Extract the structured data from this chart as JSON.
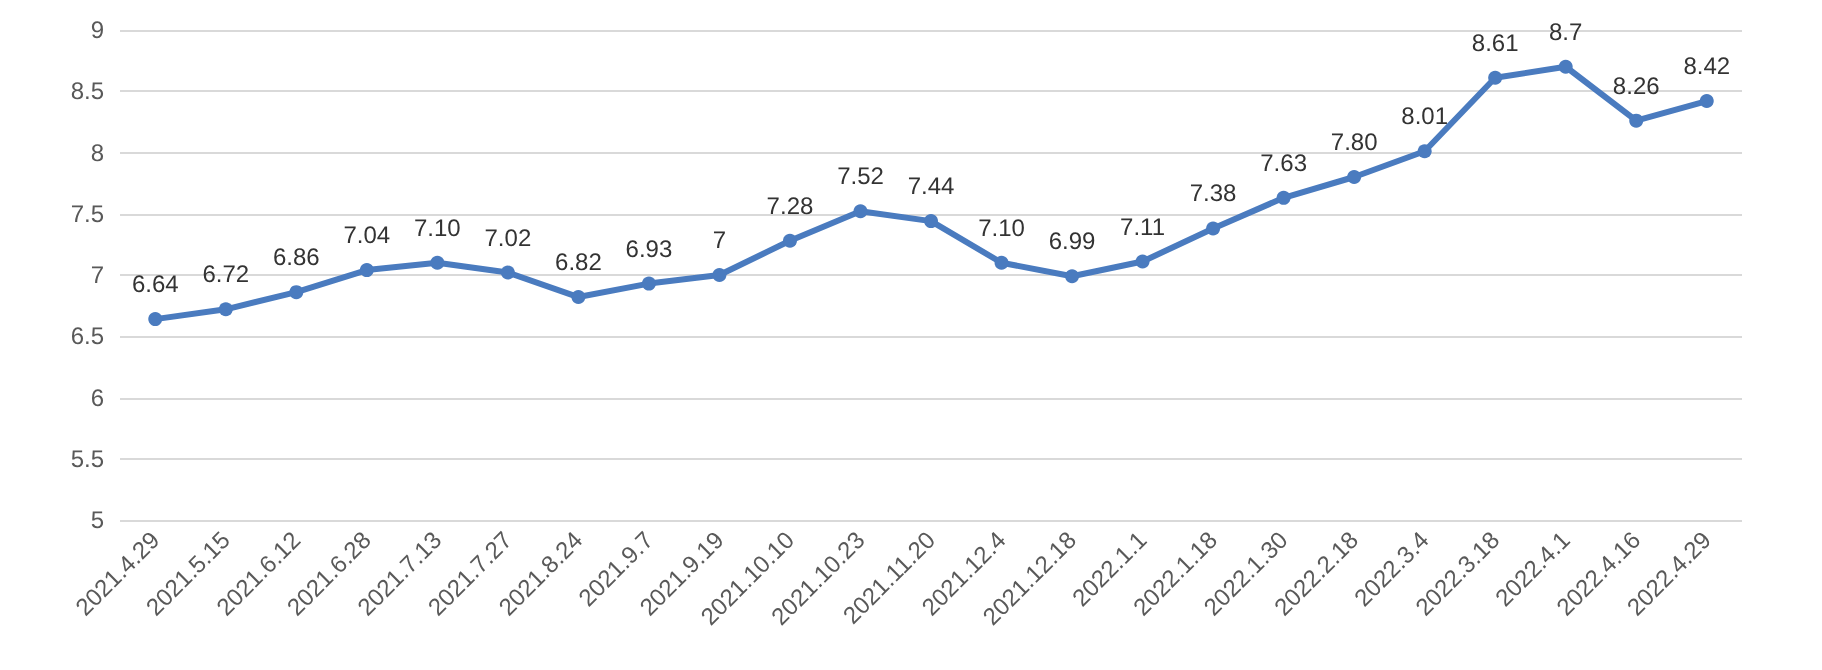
{
  "chart_data": {
    "type": "line",
    "categories": [
      "2021.4.29",
      "2021.5.15",
      "2021.6.12",
      "2021.6.28",
      "2021.7.13",
      "2021.7.27",
      "2021.8.24",
      "2021.9.7",
      "2021.9.19",
      "2021.10.10",
      "2021.10.23",
      "2021.11.20",
      "2021.12.4",
      "2021.12.18",
      "2022.1.1",
      "2022.1.18",
      "2022.1.30",
      "2022.2.18",
      "2022.3.4",
      "2022.3.18",
      "2022.4.1",
      "2022.4.16",
      "2022.4.29"
    ],
    "series": [
      {
        "color": "#4a7bbf",
        "values": [
          6.64,
          6.72,
          6.86,
          7.04,
          7.1,
          7.02,
          6.82,
          6.93,
          7,
          7.28,
          7.52,
          7.44,
          7.1,
          6.99,
          7.11,
          7.38,
          7.63,
          7.8,
          8.01,
          8.61,
          8.7,
          8.26,
          8.42
        ],
        "value_labels": [
          "6.64",
          "6.72",
          "6.86",
          "7.04",
          "7.10",
          "7.02",
          "6.82",
          "6.93",
          "7",
          "7.28",
          "7.52",
          "7.44",
          "7.10",
          "6.99",
          "7.11",
          "7.38",
          "7.63",
          "7.80",
          "8.01",
          "8.61",
          "8.7",
          "8.26",
          "8.42"
        ]
      }
    ],
    "ylim": [
      5,
      9
    ],
    "yticks": [
      5,
      5.5,
      6,
      6.5,
      7,
      7.5,
      8,
      8.5,
      9
    ],
    "grid": "y",
    "marker": "circle",
    "line_style": "solid"
  }
}
